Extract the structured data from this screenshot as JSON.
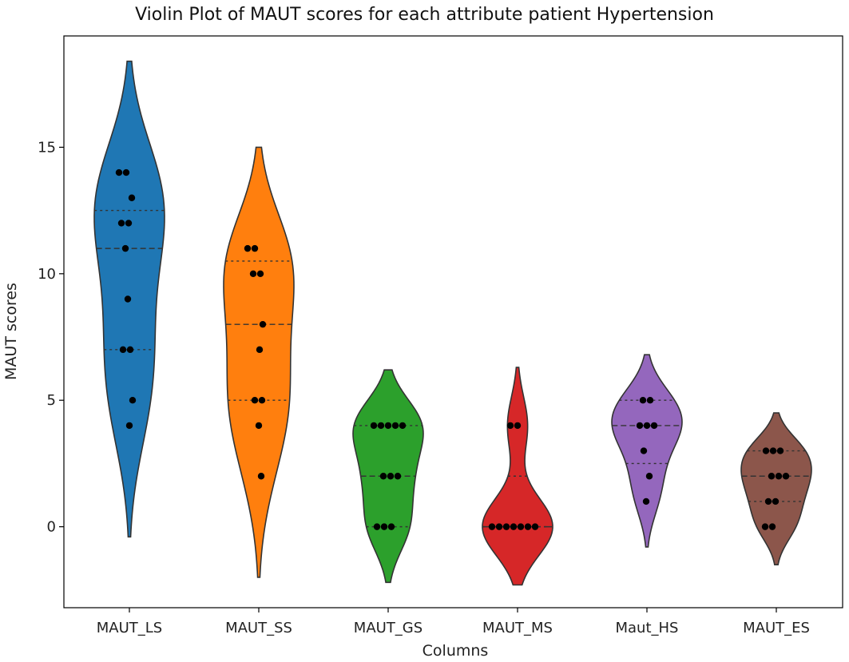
{
  "chart_data": {
    "type": "violin",
    "title": "Violin Plot of MAUT scores for each attribute patient Hypertension",
    "xlabel": "Columns",
    "ylabel": "MAUT scores",
    "ylim": [
      -3.2,
      19.4
    ],
    "yticks": [
      0,
      5,
      10,
      15
    ],
    "grid": false,
    "legend": "none",
    "categories": [
      "MAUT_LS",
      "MAUT_SS",
      "MAUT_GS",
      "MAUT_MS",
      "Maut_HS",
      "MAUT_ES"
    ],
    "series": [
      {
        "color": "#1f77b4",
        "range": [
          -0.4,
          18.4
        ],
        "quartiles": [
          7,
          11,
          12.5
        ],
        "points": [
          14,
          14,
          13,
          12,
          12,
          11,
          9,
          7,
          7,
          5,
          4
        ]
      },
      {
        "color": "#ff7f0e",
        "range": [
          -2.0,
          15.0
        ],
        "quartiles": [
          5,
          8,
          10.5
        ],
        "points": [
          11,
          11,
          10,
          10,
          8,
          7,
          5,
          5,
          4,
          2
        ]
      },
      {
        "color": "#2ca02c",
        "range": [
          -2.2,
          6.2
        ],
        "quartiles": [
          0,
          2,
          4
        ],
        "points": [
          4,
          4,
          4,
          4,
          4,
          2,
          2,
          2,
          0,
          0,
          0
        ]
      },
      {
        "color": "#d62728",
        "range": [
          -2.3,
          6.3
        ],
        "quartiles": [
          0,
          0,
          2
        ],
        "points": [
          4,
          4,
          0,
          0,
          0,
          0,
          0,
          0,
          0
        ]
      },
      {
        "color": "#9467bd",
        "range": [
          -0.8,
          6.8
        ],
        "quartiles": [
          2.5,
          4,
          5
        ],
        "points": [
          5,
          5,
          4,
          4,
          4,
          3,
          2,
          1
        ]
      },
      {
        "color": "#8c564b",
        "range": [
          -1.5,
          4.5
        ],
        "quartiles": [
          1,
          2,
          3
        ],
        "points": [
          3,
          3,
          3,
          2,
          2,
          2,
          1,
          1,
          0,
          0
        ]
      }
    ]
  }
}
